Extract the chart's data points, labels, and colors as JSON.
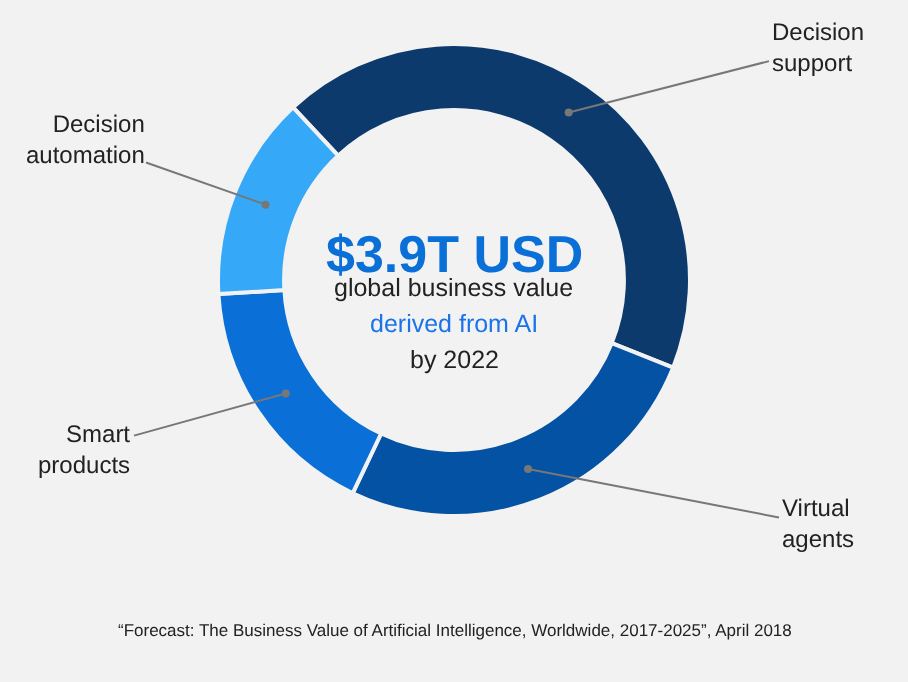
{
  "chart_data": {
    "type": "donut",
    "title": "$3.9T USD",
    "subtitle": "global business value",
    "categories": [
      "Decision support",
      "Virtual agents",
      "Smart products",
      "Decision automation"
    ],
    "values": [
      43,
      26,
      17,
      14
    ],
    "colors": [
      "#0c3a6d",
      "#0452a3",
      "#0a6fd6",
      "#35a8f8"
    ],
    "annotations": [
      "derived from AI",
      "by 2022",
      "“Forecast: The Business Value of Artificial Intelligence, Worldwide, 2017-2025”, April 2018"
    ],
    "legend": false
  }
}
